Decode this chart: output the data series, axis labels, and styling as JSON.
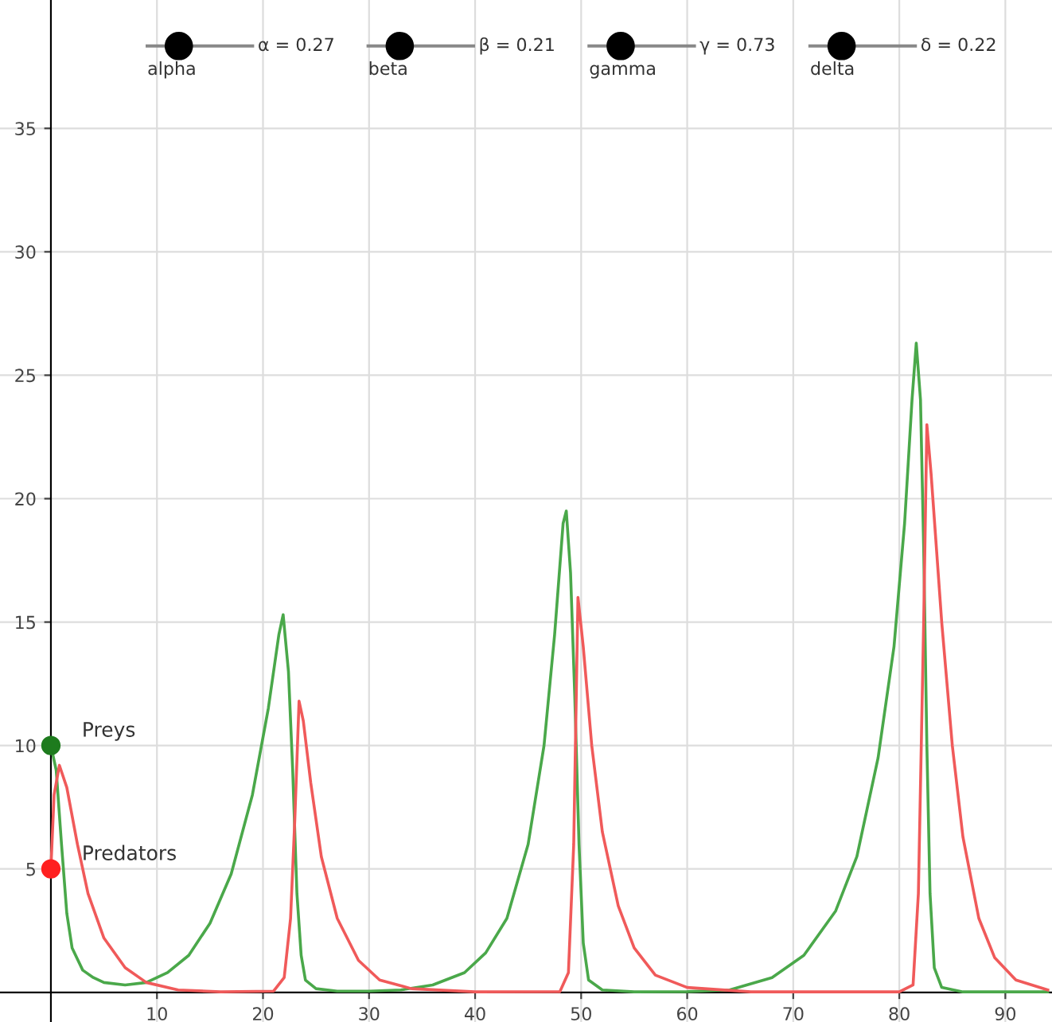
{
  "chart_data": {
    "type": "line",
    "xlim": [
      -4.8,
      94.4
    ],
    "ylim": [
      -1.2,
      40.2
    ],
    "xticks": [
      10,
      20,
      30,
      40,
      50,
      60,
      70,
      80,
      90
    ],
    "yticks": [
      5,
      10,
      15,
      20,
      25,
      30,
      35
    ],
    "grid": true,
    "legend": false,
    "marker": "none",
    "line_style": "solid",
    "annotations": [
      "alpha",
      "α = 0.27",
      "beta",
      "β = 0.21",
      "gamma",
      "γ = 0.73",
      "delta",
      "δ = 0.22"
    ],
    "series": [
      {
        "color": "#4aa84a",
        "x": [
          0,
          0.5,
          1,
          1.5,
          2,
          3,
          4,
          5,
          7,
          9,
          11,
          13,
          15,
          17,
          19,
          20.5,
          21.5,
          21.9,
          22.4,
          22.8,
          23.2,
          23.6,
          24,
          25,
          27,
          30,
          33,
          36,
          39,
          41,
          43,
          45,
          46.5,
          47.5,
          48.3,
          48.6,
          49,
          49.4,
          49.8,
          50.2,
          50.7,
          52,
          55,
          60,
          64,
          68,
          71,
          74,
          76,
          78,
          79.5,
          80.5,
          81.2,
          81.6,
          82,
          82.3,
          82.6,
          82.9,
          83.3,
          84,
          86,
          94
        ],
        "values": [
          10,
          9,
          6,
          3.2,
          1.8,
          0.9,
          0.6,
          0.4,
          0.3,
          0.4,
          0.8,
          1.5,
          2.8,
          4.8,
          8,
          11.5,
          14.5,
          15.3,
          13,
          9,
          4,
          1.5,
          0.5,
          0.15,
          0.05,
          0.05,
          0.1,
          0.3,
          0.8,
          1.6,
          3,
          6,
          10,
          14.5,
          19,
          19.5,
          17,
          12,
          6,
          2,
          0.5,
          0.1,
          0.02,
          0.03,
          0.1,
          0.6,
          1.5,
          3.3,
          5.5,
          9.5,
          14,
          19,
          24,
          26.3,
          24,
          18,
          10,
          4,
          1,
          0.2,
          0.02,
          0.02
        ]
      },
      {
        "color": "#f05a5a",
        "x": [
          0,
          0.3,
          0.8,
          1.5,
          2.5,
          3.5,
          5,
          7,
          9,
          12,
          16,
          21,
          22,
          22.6,
          23,
          23.4,
          23.8,
          24.5,
          25.5,
          27,
          29,
          31,
          34,
          40,
          48,
          48.8,
          49.3,
          49.7,
          50.2,
          51,
          52,
          53.5,
          55,
          57,
          60,
          66,
          80,
          81.3,
          81.8,
          82.3,
          82.6,
          83,
          84,
          85,
          86,
          87.5,
          89,
          91,
          94
        ],
        "values": [
          5,
          8,
          9.2,
          8.3,
          6,
          4,
          2.2,
          1,
          0.4,
          0.1,
          0.02,
          0.05,
          0.6,
          3,
          7,
          11.8,
          11,
          8.5,
          5.5,
          3,
          1.3,
          0.5,
          0.15,
          0.02,
          0.03,
          0.8,
          6,
          16,
          14,
          10,
          6.5,
          3.5,
          1.8,
          0.7,
          0.2,
          0.02,
          0.02,
          0.3,
          4,
          15,
          23,
          21,
          15,
          10,
          6.3,
          3,
          1.4,
          0.5,
          0.1
        ]
      },
      {
        "type": "scatter",
        "name": "Preys",
        "color": "#1e7b1e",
        "marker": "circle",
        "x": [
          0
        ],
        "values": [
          10
        ]
      },
      {
        "type": "scatter",
        "name": "Predators",
        "color": "#ff2020",
        "marker": "circle",
        "x": [
          0
        ],
        "values": [
          5
        ]
      }
    ]
  }
}
